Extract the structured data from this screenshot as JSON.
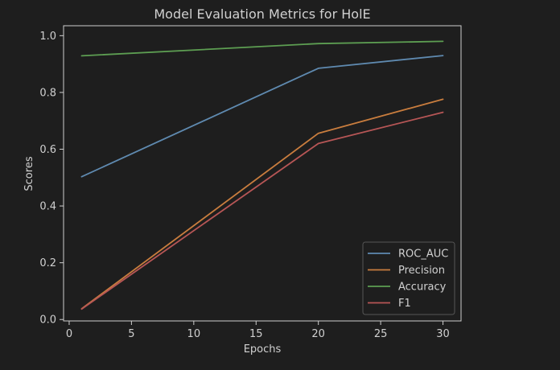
{
  "theme": {
    "background": "#1e1e1e",
    "axis_color": "#cfcfcf",
    "text_color": "#d0d0d0",
    "legend_bg": "#1e1e1e",
    "legend_border": "#555555"
  },
  "chart_data": {
    "type": "line",
    "title": "Model Evaluation Metrics for HolE",
    "xlabel": "Epochs",
    "ylabel": "Scores",
    "xlim": [
      -0.45,
      31.45
    ],
    "ylim": [
      -0.005,
      1.035
    ],
    "xticks": [
      0,
      5,
      10,
      15,
      20,
      25,
      30
    ],
    "xtick_labels": [
      "0",
      "5",
      "10",
      "15",
      "20",
      "25",
      "30"
    ],
    "yticks": [
      0.0,
      0.2,
      0.4,
      0.6,
      0.8,
      1.0
    ],
    "ytick_labels": [
      "0.0",
      "0.2",
      "0.4",
      "0.6",
      "0.8",
      "1.0"
    ],
    "grid": false,
    "legend_position": "lower-right",
    "x": [
      1,
      20,
      30
    ],
    "series": [
      {
        "name": "ROC_AUC",
        "color": "#5f8ab0",
        "values": [
          0.503,
          0.885,
          0.93
        ]
      },
      {
        "name": "Precision",
        "color": "#c97d3e",
        "values": [
          0.038,
          0.656,
          0.776
        ]
      },
      {
        "name": "Accuracy",
        "color": "#5d9e52",
        "values": [
          0.929,
          0.972,
          0.98
        ]
      },
      {
        "name": "F1",
        "color": "#b75656",
        "values": [
          0.037,
          0.62,
          0.73
        ]
      }
    ]
  }
}
